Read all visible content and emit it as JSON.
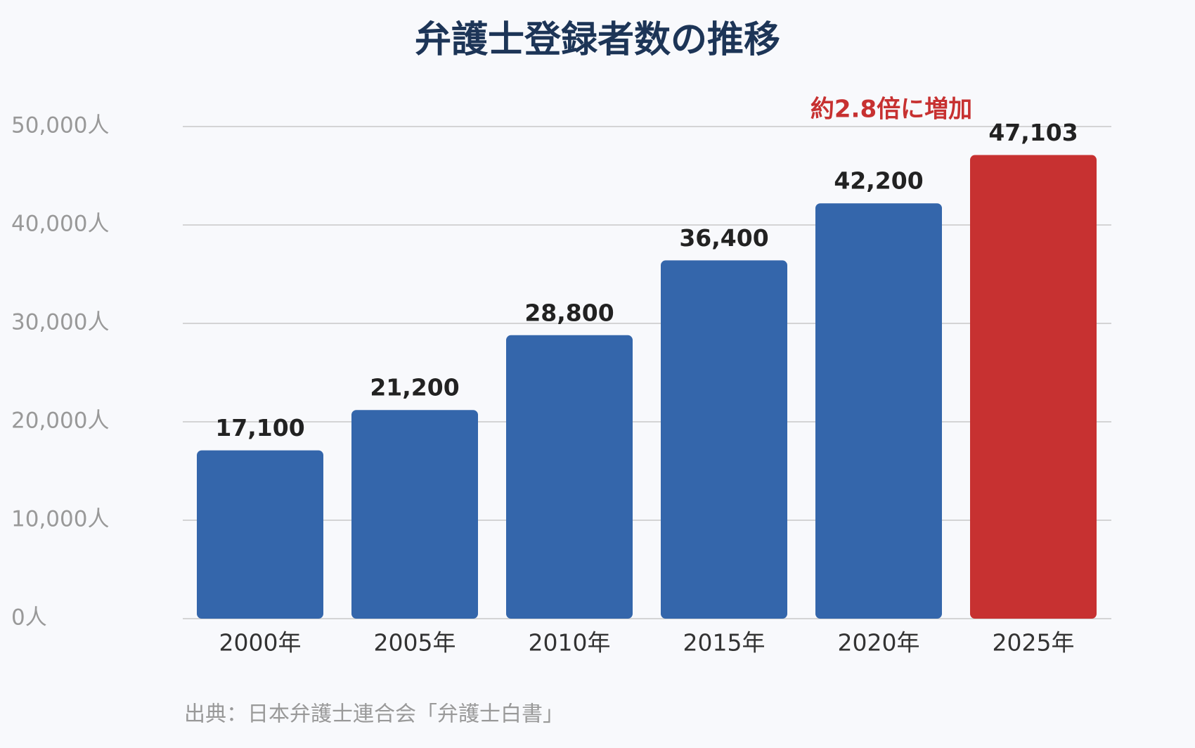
{
  "chart_data": {
    "type": "bar",
    "title": "弁護士登録者数の推移",
    "categories": [
      "2000年",
      "2005年",
      "2010年",
      "2015年",
      "2020年",
      "2025年"
    ],
    "values": [
      17100,
      21200,
      28800,
      36400,
      42200,
      47103
    ],
    "value_labels": [
      "17,100",
      "21,200",
      "28,800",
      "36,400",
      "42,200",
      "47,103"
    ],
    "colors": [
      "#3466ab",
      "#3466ab",
      "#3466ab",
      "#3466ab",
      "#3466ab",
      "#c73131"
    ],
    "ylim": [
      0,
      50000
    ],
    "yticks": [
      {
        "value": 0,
        "label": "0人"
      },
      {
        "value": 10000,
        "label": "10,000人"
      },
      {
        "value": 20000,
        "label": "20,000人"
      },
      {
        "value": 30000,
        "label": "30,000人"
      },
      {
        "value": 40000,
        "label": "40,000人"
      },
      {
        "value": 50000,
        "label": "50,000人"
      }
    ],
    "grid": true,
    "annotation": "約2.8倍に増加",
    "source": "出典：日本弁護士連合会「弁護士白書」"
  }
}
